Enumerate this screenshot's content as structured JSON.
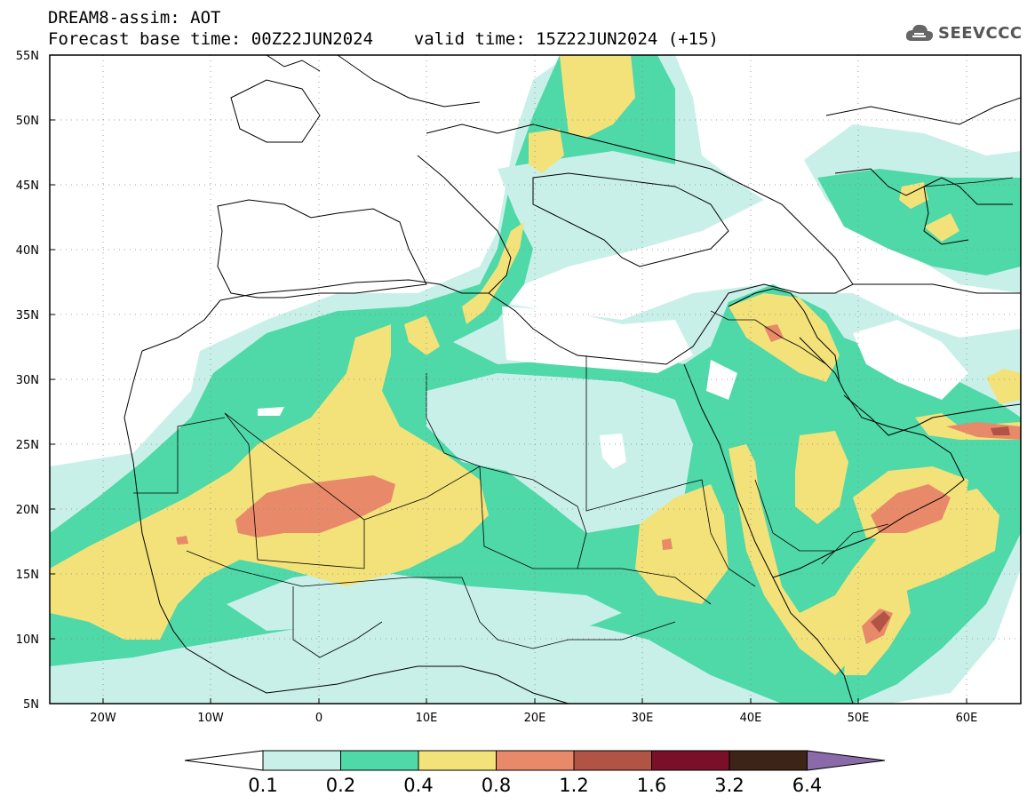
{
  "title": {
    "line1": "DREAM8-assim: AOT",
    "base_time_label": "Forecast base time: 00Z22JUN2024",
    "valid_time_label": "valid time: 15Z22JUN2024 (+15)"
  },
  "logo": {
    "icon": "cloud-icon",
    "text": "SEEVCCC"
  },
  "map": {
    "lat_labels": [
      "55N",
      "50N",
      "45N",
      "40N",
      "35N",
      "30N",
      "25N",
      "20N",
      "15N",
      "10N",
      "5N"
    ],
    "lon_labels": [
      "20W",
      "10W",
      "0",
      "10E",
      "20E",
      "30E",
      "40E",
      "50E",
      "60E"
    ]
  },
  "colorbar": {
    "labels": [
      "0.1",
      "0.2",
      "0.4",
      "0.8",
      "1.2",
      "1.6",
      "3.2",
      "6.4"
    ],
    "colors": [
      "#ffffff",
      "#c8f0e8",
      "#4fd8a8",
      "#f3e27a",
      "#e8896a",
      "#b25445",
      "#7a0f2a",
      "#3c2416",
      "#8a6aa8"
    ]
  },
  "palette": {
    "very_light": "#c8f0e8",
    "light": "#4fd8a8",
    "medium": "#f3e27a",
    "high": "#e8896a",
    "very_high": "#b25445"
  }
}
